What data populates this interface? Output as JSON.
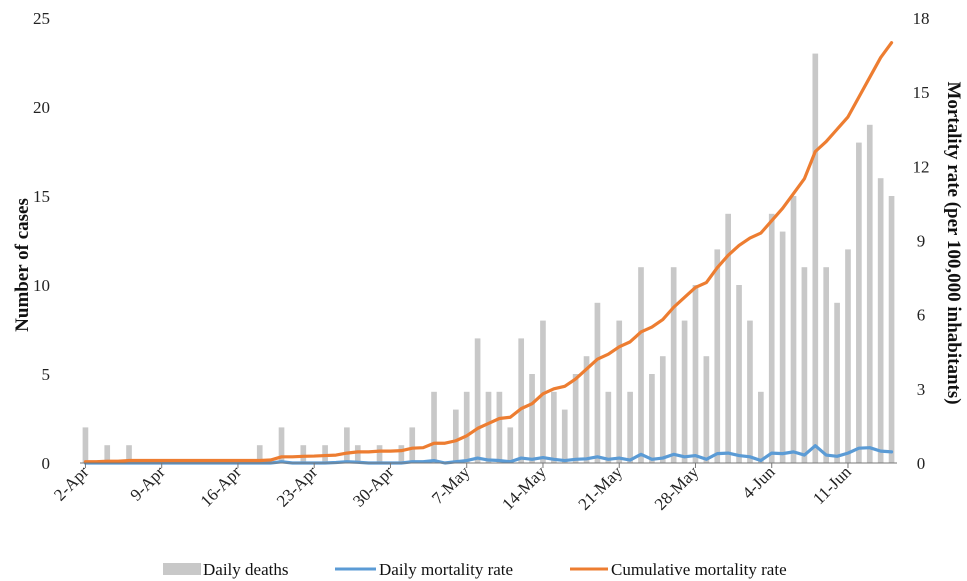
{
  "chart_data": {
    "type": "bar+line",
    "x_tick_labels": [
      "2-Apr",
      "9-Apr",
      "16-Apr",
      "23-Apr",
      "30-Apr",
      "7-May",
      "14-May",
      "21-May",
      "28-May",
      "4-Jun",
      "11-Jun"
    ],
    "x": [
      "2-Apr",
      "3-Apr",
      "4-Apr",
      "5-Apr",
      "6-Apr",
      "7-Apr",
      "8-Apr",
      "9-Apr",
      "10-Apr",
      "11-Apr",
      "12-Apr",
      "13-Apr",
      "14-Apr",
      "15-Apr",
      "16-Apr",
      "17-Apr",
      "18-Apr",
      "19-Apr",
      "20-Apr",
      "21-Apr",
      "22-Apr",
      "23-Apr",
      "24-Apr",
      "25-Apr",
      "26-Apr",
      "27-Apr",
      "28-Apr",
      "29-Apr",
      "30-Apr",
      "1-May",
      "2-May",
      "3-May",
      "4-May",
      "5-May",
      "6-May",
      "7-May",
      "8-May",
      "9-May",
      "10-May",
      "11-May",
      "12-May",
      "13-May",
      "14-May",
      "15-May",
      "16-May",
      "17-May",
      "18-May",
      "19-May",
      "20-May",
      "21-May",
      "22-May",
      "23-May",
      "24-May",
      "25-May",
      "26-May",
      "27-May",
      "28-May",
      "29-May",
      "30-May",
      "31-May",
      "1-Jun",
      "2-Jun",
      "3-Jun",
      "4-Jun",
      "5-Jun",
      "6-Jun",
      "7-Jun",
      "8-Jun",
      "9-Jun",
      "10-Jun",
      "11-Jun",
      "12-Jun",
      "13-Jun",
      "14-Jun",
      "15-Jun"
    ],
    "series": [
      {
        "name": "Daily deaths",
        "kind": "bar",
        "axis": "left",
        "color": "#c8c8c8",
        "values": [
          2,
          0,
          1,
          0,
          1,
          0,
          0,
          0,
          0,
          0,
          0,
          0,
          0,
          0,
          0,
          0,
          1,
          0,
          2,
          0,
          1,
          0,
          1,
          0,
          2,
          1,
          0,
          1,
          0,
          1,
          2,
          0,
          4,
          0,
          3,
          4,
          7,
          4,
          4,
          2,
          7,
          5,
          8,
          4,
          3,
          5,
          6,
          9,
          4,
          8,
          4,
          11,
          5,
          6,
          11,
          8,
          10,
          6,
          12,
          14,
          10,
          8,
          4,
          14,
          13,
          15,
          11,
          23,
          11,
          9,
          12,
          18,
          19,
          16,
          15
        ]
      },
      {
        "name": "Daily mortality rate",
        "kind": "line",
        "axis": "right",
        "color": "#5b9bd5",
        "values": [
          0,
          0,
          0,
          0,
          0,
          0,
          0,
          0,
          0,
          0,
          0,
          0,
          0,
          0,
          0,
          0,
          0,
          0,
          0.05,
          0,
          0,
          0,
          0,
          0.02,
          0.05,
          0.03,
          0,
          0,
          0,
          0,
          0.05,
          0.05,
          0.1,
          0,
          0.05,
          0.1,
          0.2,
          0.12,
          0.1,
          0.05,
          0.2,
          0.15,
          0.22,
          0.15,
          0.1,
          0.15,
          0.17,
          0.25,
          0.15,
          0.2,
          0.12,
          0.35,
          0.15,
          0.2,
          0.35,
          0.25,
          0.3,
          0.15,
          0.38,
          0.4,
          0.3,
          0.25,
          0.1,
          0.4,
          0.38,
          0.45,
          0.32,
          0.7,
          0.32,
          0.27,
          0.4,
          0.6,
          0.62,
          0.48,
          0.45
        ]
      },
      {
        "name": "Cumulative mortality rate",
        "kind": "line",
        "axis": "right",
        "color": "#ed7d31",
        "values": [
          0.05,
          0.05,
          0.07,
          0.07,
          0.1,
          0.1,
          0.1,
          0.1,
          0.1,
          0.1,
          0.1,
          0.1,
          0.1,
          0.1,
          0.1,
          0.1,
          0.1,
          0.12,
          0.25,
          0.25,
          0.27,
          0.28,
          0.3,
          0.32,
          0.4,
          0.45,
          0.45,
          0.48,
          0.48,
          0.5,
          0.6,
          0.62,
          0.8,
          0.8,
          0.9,
          1.1,
          1.4,
          1.6,
          1.8,
          1.85,
          2.2,
          2.4,
          2.8,
          3.0,
          3.1,
          3.4,
          3.8,
          4.2,
          4.4,
          4.7,
          4.9,
          5.3,
          5.5,
          5.8,
          6.3,
          6.7,
          7.1,
          7.3,
          7.9,
          8.4,
          8.8,
          9.1,
          9.3,
          9.8,
          10.3,
          10.9,
          11.5,
          12.6,
          13.0,
          13.5,
          14.0,
          14.8,
          15.6,
          16.4,
          17.0
        ]
      }
    ],
    "ylabel": "Number of cases",
    "y2label": "Mortality rate (per 100,000 inhabitants)",
    "ylim": [
      0,
      25
    ],
    "yticks": [
      "0",
      "5",
      "10",
      "15",
      "20",
      "25"
    ],
    "y2lim": [
      0,
      18
    ],
    "y2ticks": [
      "0",
      "3",
      "6",
      "9",
      "12",
      "15",
      "18"
    ],
    "grid": false,
    "legend_position": "bottom"
  }
}
